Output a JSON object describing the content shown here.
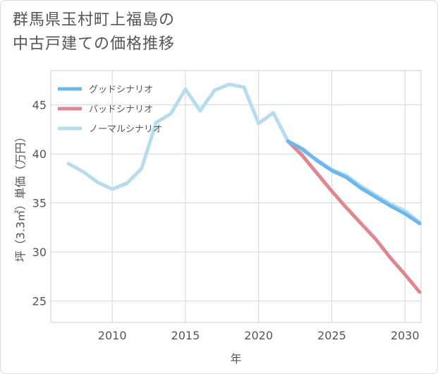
{
  "title_lines": [
    "群馬県玉村町上福島の",
    "中古戸建ての価格推移"
  ],
  "chart_data": {
    "type": "line",
    "xlabel": "年",
    "ylabel": "坪（3.3㎡）単価（万円）",
    "xlim": [
      2005.8,
      2031.1
    ],
    "ylim": [
      22.8,
      48.5
    ],
    "x_ticks": [
      2010,
      2015,
      2020,
      2025,
      2030
    ],
    "y_ticks": [
      25,
      30,
      35,
      40,
      45
    ],
    "grid": true,
    "legend_position": "top-left",
    "series": [
      {
        "name": "グッドシナリオ",
        "color": "#6cb8ec",
        "x": [
          2022,
          2023,
          2024,
          2025,
          2026,
          2027,
          2028,
          2029,
          2030,
          2031
        ],
        "y": [
          41.3,
          40.5,
          39.3,
          38.3,
          37.6,
          36.5,
          35.6,
          34.7,
          33.9,
          32.9
        ]
      },
      {
        "name": "バッドシナリオ",
        "color": "#e0868e",
        "x": [
          2022,
          2023,
          2024,
          2025,
          2026,
          2027,
          2028,
          2029,
          2030,
          2031
        ],
        "y": [
          41.3,
          39.8,
          38.0,
          36.2,
          34.5,
          32.9,
          31.3,
          29.4,
          27.7,
          25.9
        ]
      },
      {
        "name": "ノーマルシナリオ",
        "color": "#b7dcec",
        "x": [
          2007,
          2008,
          2009,
          2010,
          2011,
          2012,
          2013,
          2014,
          2015,
          2016,
          2017,
          2018,
          2019,
          2020,
          2021,
          2022,
          2023,
          2024,
          2025,
          2026,
          2027,
          2028,
          2029,
          2030,
          2031
        ],
        "y": [
          39.0,
          38.2,
          37.1,
          36.4,
          37.0,
          38.5,
          43.2,
          44.1,
          46.6,
          44.4,
          46.5,
          47.1,
          46.8,
          43.1,
          44.2,
          41.3,
          40.3,
          39.4,
          38.4,
          37.8,
          36.7,
          35.8,
          34.9,
          34.2,
          33.0
        ]
      }
    ]
  }
}
